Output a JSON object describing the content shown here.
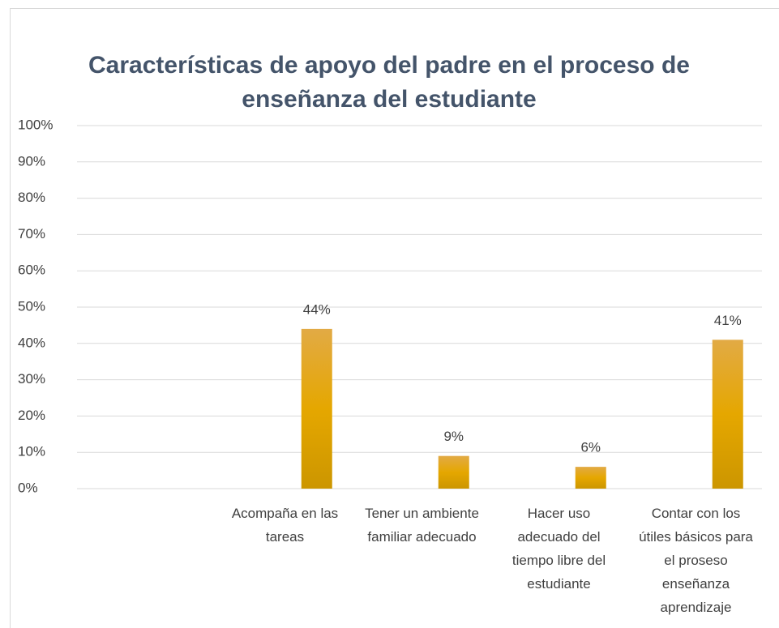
{
  "chart_data": {
    "type": "bar",
    "title": "Características de apoyo del padre en el proceso de enseñanza del estudiante",
    "categories": [
      null,
      "Acompaña en las tareas",
      "Tener un ambiente familiar adecuado",
      "Hacer uso adecuado del tiempo libre del estudiante",
      "Contar con los útiles básicos para el proseso enseñanza aprendizaje"
    ],
    "values": [
      null,
      44,
      9,
      6,
      41
    ],
    "value_labels": [
      null,
      "44%",
      "9%",
      "6%",
      "41%"
    ],
    "color": "#e3a600",
    "ylim": [
      0,
      100
    ],
    "yticks": [
      {
        "value": 0,
        "label": "0%"
      },
      {
        "value": 10,
        "label": "10%"
      },
      {
        "value": 20,
        "label": "20%"
      },
      {
        "value": 30,
        "label": "30%"
      },
      {
        "value": 40,
        "label": "40%"
      },
      {
        "value": 50,
        "label": "50%"
      },
      {
        "value": 60,
        "label": "60%"
      },
      {
        "value": 70,
        "label": "70%"
      },
      {
        "value": 80,
        "label": "80%"
      },
      {
        "value": 90,
        "label": "90%"
      },
      {
        "value": 100,
        "label": "100%"
      }
    ],
    "grid": true
  }
}
